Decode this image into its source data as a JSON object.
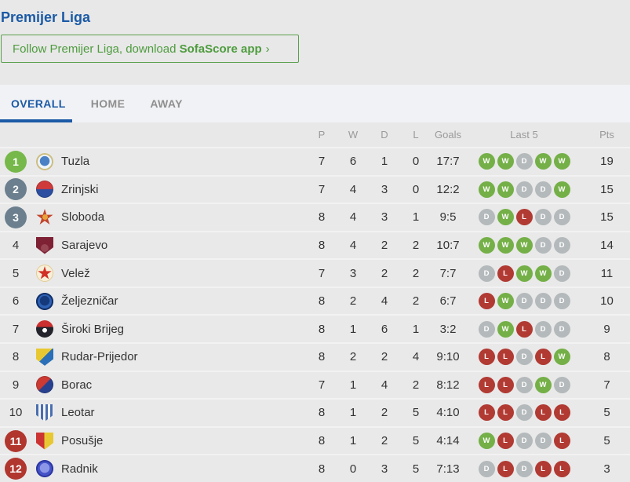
{
  "header": {
    "title": "Premijer Liga"
  },
  "follow": {
    "text": "Follow Premijer Liga, download ",
    "bold": "SofaScore app",
    "chevron": "›"
  },
  "tabs": [
    {
      "label": "OVERALL",
      "active": true
    },
    {
      "label": "HOME",
      "active": false
    },
    {
      "label": "AWAY",
      "active": false
    }
  ],
  "table": {
    "columns": {
      "p": "P",
      "w": "W",
      "d": "D",
      "l": "L",
      "goals": "Goals",
      "last5": "Last 5",
      "pts": "Pts"
    },
    "rows": [
      {
        "pos": 1,
        "badge": "green",
        "team": "Tuzla",
        "p": 7,
        "w": 6,
        "d": 1,
        "l": 0,
        "goals": "17:7",
        "last5": [
          "W",
          "W",
          "D",
          "W",
          "W"
        ],
        "pts": 19,
        "logo": {
          "shape": "circle",
          "c1": "#eef4fb",
          "c2": "#4a80c4",
          "c3": "#cdbd7e"
        }
      },
      {
        "pos": 2,
        "badge": "slate",
        "team": "Zrinjski",
        "p": 7,
        "w": 4,
        "d": 3,
        "l": 0,
        "goals": "12:2",
        "last5": [
          "W",
          "W",
          "D",
          "D",
          "W"
        ],
        "pts": 15,
        "logo": {
          "shape": "circle2",
          "c1": "#cf3b3b",
          "c2": "#2b4ea0",
          "angle": "180deg"
        }
      },
      {
        "pos": 3,
        "badge": "slate",
        "team": "Sloboda",
        "p": 8,
        "w": 4,
        "d": 3,
        "l": 1,
        "goals": "9:5",
        "last5": [
          "D",
          "W",
          "L",
          "D",
          "D"
        ],
        "pts": 15,
        "logo": {
          "shape": "star",
          "c1": "#c2452c",
          "c2": "#e8a43c"
        }
      },
      {
        "pos": 4,
        "badge": "none",
        "team": "Sarajevo",
        "p": 8,
        "w": 4,
        "d": 2,
        "l": 2,
        "goals": "10:7",
        "last5": [
          "W",
          "W",
          "W",
          "D",
          "D"
        ],
        "pts": 14,
        "logo": {
          "shape": "shield",
          "c1": "#7e2134",
          "c2": "#9c4b59"
        }
      },
      {
        "pos": 5,
        "badge": "none",
        "team": "Velež",
        "p": 7,
        "w": 3,
        "d": 2,
        "l": 2,
        "goals": "7:7",
        "last5": [
          "D",
          "L",
          "W",
          "W",
          "D"
        ],
        "pts": 11,
        "logo": {
          "shape": "star-circle",
          "c1": "#d03026",
          "c2": "#f8efd8"
        }
      },
      {
        "pos": 6,
        "badge": "none",
        "team": "Željezničar",
        "p": 8,
        "w": 2,
        "d": 4,
        "l": 2,
        "goals": "6:7",
        "last5": [
          "L",
          "W",
          "D",
          "D",
          "D"
        ],
        "pts": 10,
        "logo": {
          "shape": "circle",
          "c1": "#2e62b5",
          "c2": "#15397a",
          "c3": "#122f66"
        }
      },
      {
        "pos": 7,
        "badge": "none",
        "team": "Široki Brijeg",
        "p": 8,
        "w": 1,
        "d": 6,
        "l": 1,
        "goals": "3:2",
        "last5": [
          "D",
          "W",
          "L",
          "D",
          "D"
        ],
        "pts": 9,
        "logo": {
          "shape": "ball",
          "c1": "#24242c",
          "c2": "#cc2f2f"
        }
      },
      {
        "pos": 8,
        "badge": "none",
        "team": "Rudar-Prijedor",
        "p": 8,
        "w": 2,
        "d": 2,
        "l": 4,
        "goals": "9:10",
        "last5": [
          "L",
          "L",
          "D",
          "L",
          "W"
        ],
        "pts": 8,
        "logo": {
          "shape": "shield2",
          "c1": "#2b6fb8",
          "c2": "#e8c832",
          "angle": "135deg"
        }
      },
      {
        "pos": 9,
        "badge": "none",
        "team": "Borac",
        "p": 7,
        "w": 1,
        "d": 4,
        "l": 2,
        "goals": "8:12",
        "last5": [
          "L",
          "L",
          "D",
          "W",
          "D"
        ],
        "pts": 7,
        "logo": {
          "shape": "circle2",
          "c1": "#cc3a33",
          "c2": "#27408f",
          "angle": "135deg"
        }
      },
      {
        "pos": 10,
        "badge": "none",
        "team": "Leotar",
        "p": 8,
        "w": 1,
        "d": 2,
        "l": 5,
        "goals": "4:10",
        "last5": [
          "L",
          "L",
          "D",
          "L",
          "L"
        ],
        "pts": 5,
        "logo": {
          "shape": "stripes",
          "c1": "#4a6fae",
          "c2": "#f2f4f8"
        }
      },
      {
        "pos": 11,
        "badge": "red",
        "team": "Posušje",
        "p": 8,
        "w": 1,
        "d": 2,
        "l": 5,
        "goals": "4:14",
        "last5": [
          "W",
          "L",
          "D",
          "D",
          "L"
        ],
        "pts": 5,
        "logo": {
          "shape": "shield2",
          "c1": "#e8c832",
          "c2": "#cc3333",
          "angle": "90deg"
        }
      },
      {
        "pos": 12,
        "badge": "red",
        "team": "Radnik",
        "p": 8,
        "w": 0,
        "d": 3,
        "l": 5,
        "goals": "7:13",
        "last5": [
          "D",
          "L",
          "D",
          "L",
          "L"
        ],
        "pts": 3,
        "logo": {
          "shape": "circle",
          "c1": "#4553c8",
          "c2": "#8d97e8",
          "c3": "#2c37a0"
        }
      }
    ]
  },
  "colors": {
    "accent_blue": "#1b5aa6",
    "follow_green": "#4e9c3e",
    "win": "#74b047",
    "draw": "#b4b9bb",
    "loss": "#b13a33",
    "badge_green": "#76b84a",
    "badge_slate": "#6b7f8e",
    "badge_red": "#b0362e"
  }
}
